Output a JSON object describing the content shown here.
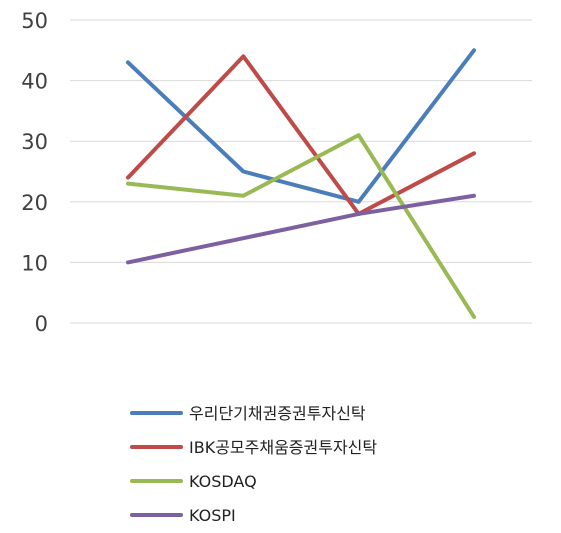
{
  "chart_data": {
    "type": "line",
    "categories": [
      "",
      "",
      "",
      ""
    ],
    "ylim": [
      0,
      50
    ],
    "y_ticks": [
      0,
      10,
      20,
      30,
      40,
      50
    ],
    "grid": true,
    "legend_position": "bottom",
    "series": [
      {
        "name": "우리단기채권증권투자신탁",
        "color": "#4a7ebb",
        "values": [
          43,
          25,
          20,
          45
        ]
      },
      {
        "name": "IBK공모주채움증권투자신탁",
        "color": "#be4b48",
        "values": [
          24,
          44,
          18,
          28
        ]
      },
      {
        "name": "KOSDAQ",
        "color": "#98b954",
        "values": [
          23,
          21,
          31,
          1
        ]
      },
      {
        "name": "KOSPI",
        "color": "#7d60a0",
        "values": [
          10,
          14,
          18,
          21
        ]
      }
    ]
  }
}
